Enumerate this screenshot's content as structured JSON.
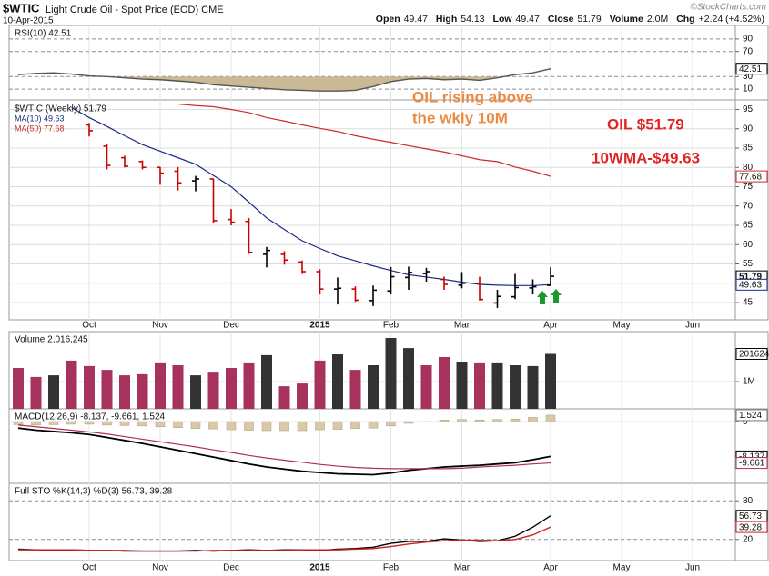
{
  "chart_data": {
    "type": "stock",
    "title": "$WTIC",
    "subtitle": "Light Crude Oil - Spot Price (EOD) CME",
    "date": "10-Apr-2015",
    "source": "©StockCharts.com",
    "quote": [
      {
        "label": "Open",
        "value": 49.47
      },
      {
        "label": "High",
        "value": 54.13
      },
      {
        "label": "Low",
        "value": 49.47
      },
      {
        "label": "Close",
        "value": 51.79
      },
      {
        "label": "Volume",
        "value": "2.0M"
      },
      {
        "label": "Chg",
        "value": "+2.24 (+4.52%)"
      }
    ],
    "annotations": [
      "OIL rising above",
      "the wkly 10M",
      "OIL $51.79",
      "10WMA-$49.63"
    ],
    "categories": [
      null,
      null,
      null,
      null,
      "Oct",
      null,
      null,
      null,
      "Nov",
      null,
      null,
      null,
      "Dec",
      null,
      null,
      null,
      null,
      "2015",
      null,
      null,
      null,
      "Feb",
      null,
      null,
      null,
      "Mar",
      null,
      null,
      null,
      null,
      "Apr",
      null,
      null,
      null,
      "May",
      null,
      null,
      null,
      "Jun"
    ],
    "panels": [
      {
        "type": "line",
        "label": "RSI(10) 42.51",
        "ylim": [
          0,
          100
        ],
        "yticks": [
          10,
          30,
          70,
          90
        ],
        "grid_style": "dashed",
        "fill_color": "#c9b994",
        "series": [
          {
            "color": "#555555",
            "values": [
              33,
              35,
              36,
              34,
              31,
              30,
              28,
              26,
              25,
              23,
              21,
              17,
              15,
              13,
              11,
              9,
              8,
              7,
              7,
              8,
              14,
              22,
              26,
              27,
              25,
              26,
              24,
              28,
              33,
              36,
              42.51,
              null,
              null,
              null,
              null,
              null,
              null,
              null,
              null
            ]
          }
        ]
      },
      {
        "type": "ohlc",
        "label": "$WTIC (Weekly) 51.79",
        "ylim": [
          41,
          97
        ],
        "yticks": [
          45,
          50,
          55,
          60,
          65,
          70,
          75,
          80,
          85,
          90,
          95
        ],
        "grid_style": "solid",
        "up_color": "#000000",
        "down_color": "#cc0000",
        "open": [
          null,
          null,
          null,
          null,
          91.0,
          85.5,
          82.5,
          81.5,
          80.0,
          79.0,
          76.5,
          77.0,
          66.5,
          66.0,
          57.5,
          57.5,
          55.5,
          53.0,
          48.5,
          48.5,
          45.5,
          48.0,
          51.5,
          52.5,
          51.0,
          49.5,
          50.0,
          44.9,
          46.5,
          48.8,
          49.47,
          null,
          null,
          null,
          null,
          null,
          null,
          null,
          null
        ],
        "high": [
          null,
          null,
          null,
          null,
          91.5,
          86.0,
          83.0,
          81.8,
          80.1,
          80.1,
          77.8,
          77.1,
          69.2,
          66.9,
          59.4,
          58.3,
          55.9,
          53.6,
          51.5,
          49.2,
          49.4,
          54.2,
          54.3,
          54.0,
          51.7,
          52.9,
          51.7,
          48.3,
          52.4,
          51.0,
          54.13,
          null,
          null,
          null,
          null,
          null,
          null,
          null,
          null
        ],
        "low": [
          null,
          null,
          null,
          null,
          88.0,
          79.5,
          80.0,
          79.5,
          75.5,
          74.0,
          73.8,
          65.7,
          65.0,
          57.6,
          54.1,
          54.8,
          52.4,
          47.1,
          44.5,
          45.2,
          44.1,
          47.1,
          48.3,
          50.4,
          48.3,
          48.7,
          45.5,
          43.6,
          45.9,
          47.1,
          49.47,
          null,
          null,
          null,
          null,
          null,
          null,
          null,
          null
        ],
        "close": [
          null,
          null,
          null,
          null,
          89.5,
          80.5,
          80.3,
          80.0,
          78.5,
          76.0,
          77.0,
          66.2,
          65.8,
          58.0,
          58.5,
          56.0,
          53.0,
          48.5,
          48.7,
          45.6,
          48.2,
          51.7,
          52.8,
          53.0,
          49.7,
          50.0,
          45.8,
          46.6,
          48.9,
          49.1,
          51.79,
          null,
          null,
          null,
          null,
          null,
          null,
          null,
          null
        ],
        "overlays": [
          {
            "name": "MA(10) 49.63",
            "color": "#1c2a86",
            "values": [
              null,
              null,
              null,
              95.5,
              92.9,
              90.6,
              88.2,
              85.9,
              84.2,
              82.5,
              80.8,
              77.9,
              75.0,
              71.0,
              66.9,
              63.9,
              61.0,
              59.0,
              57.1,
              55.8,
              54.5,
              53.3,
              52.2,
              51.6,
              51.0,
              50.3,
              49.7,
              49.5,
              49.4,
              49.4,
              49.63,
              null,
              null,
              null,
              null,
              null,
              null,
              null,
              null
            ]
          },
          {
            "name": "MA(50) 77.68",
            "color": "#cc2b2b",
            "values": [
              null,
              null,
              null,
              null,
              null,
              null,
              null,
              null,
              null,
              96.4,
              96.0,
              95.7,
              95.0,
              94.2,
              92.9,
              92.0,
              91.0,
              90.1,
              89.3,
              88.2,
              87.3,
              86.5,
              85.6,
              84.8,
              84.0,
              83.0,
              82.0,
              81.5,
              80.1,
              79.0,
              77.68,
              null,
              null,
              null,
              null,
              null,
              null,
              null,
              null
            ]
          }
        ]
      },
      {
        "type": "bar",
        "label": "Volume 2,016,245",
        "ylim": [
          0,
          2800000
        ],
        "yticks": [
          {
            "value": 1000000,
            "label": "1M"
          }
        ],
        "grid_style": "solid",
        "box_color": "#000000",
        "values": [
          1500000,
          1170000,
          1230000,
          1770000,
          1570000,
          1430000,
          1230000,
          1270000,
          1670000,
          1600000,
          1230000,
          1330000,
          1500000,
          1670000,
          1970000,
          830000,
          930000,
          1770000,
          2000000,
          1430000,
          1600000,
          2600000,
          2230000,
          1600000,
          1900000,
          1730000,
          1670000,
          1670000,
          1600000,
          1570000,
          2016245,
          null,
          null,
          null,
          null,
          null,
          null,
          null,
          null
        ],
        "colors": [
          "#a8325e",
          "#a8325e",
          "#333333",
          "#a8325e",
          "#a8325e",
          "#a8325e",
          "#a8325e",
          "#a8325e",
          "#a8325e",
          "#a8325e",
          "#333333",
          "#a8325e",
          "#a8325e",
          "#a8325e",
          "#333333",
          "#a8325e",
          "#a8325e",
          "#a8325e",
          "#333333",
          "#a8325e",
          "#333333",
          "#333333",
          "#333333",
          "#a8325e",
          "#a8325e",
          "#333333",
          "#a8325e",
          "#333333",
          "#333333",
          "#333333",
          "#333333",
          null,
          null,
          null,
          null,
          null,
          null,
          null,
          null
        ]
      },
      {
        "type": "macd",
        "label": "MACD(12,26,9) -8.137, -9.661, 1.524",
        "ylim": [
          -14,
          3
        ],
        "yticks": [
          0
        ],
        "grid_style": "solid",
        "histogram": {
          "color": "#d9c9a6",
          "values": [
            -0.7,
            -0.8,
            -0.7,
            -0.6,
            -0.6,
            -0.8,
            -0.9,
            -1.0,
            -1.2,
            -1.4,
            -1.6,
            -1.7,
            -1.9,
            -2.0,
            -2.1,
            -2.1,
            -2.1,
            -1.9,
            -1.8,
            -1.6,
            -1.5,
            -1.0,
            -0.4,
            0.0,
            0.4,
            0.5,
            0.4,
            0.5,
            0.6,
            1.0,
            1.524,
            null,
            null,
            null,
            null,
            null,
            null,
            null,
            null
          ]
        },
        "series": [
          {
            "color": "#000000",
            "values": [
              -1.5,
              -2.0,
              -2.3,
              -2.6,
              -3.0,
              -3.7,
              -4.4,
              -5.1,
              -5.9,
              -6.7,
              -7.5,
              -8.3,
              -9.1,
              -9.9,
              -10.6,
              -11.1,
              -11.6,
              -11.9,
              -12.2,
              -12.3,
              -12.4,
              -12.0,
              -11.4,
              -11.0,
              -10.6,
              -10.4,
              -10.2,
              -9.9,
              -9.6,
              -8.9,
              -8.137,
              null,
              null,
              null,
              null,
              null,
              null,
              null,
              null
            ]
          },
          {
            "color": "#b03050",
            "values": [
              -0.8,
              -1.2,
              -1.6,
              -2.0,
              -2.4,
              -2.9,
              -3.5,
              -4.1,
              -4.7,
              -5.3,
              -5.9,
              -6.6,
              -7.2,
              -7.9,
              -8.5,
              -9.0,
              -9.5,
              -10.0,
              -10.4,
              -10.7,
              -10.9,
              -11.0,
              -11.0,
              -11.0,
              -11.0,
              -10.9,
              -10.6,
              -10.4,
              -10.2,
              -9.9,
              -9.661,
              null,
              null,
              null,
              null,
              null,
              null,
              null,
              null
            ]
          }
        ]
      },
      {
        "type": "line",
        "label": "Full STO %K(14,3) %D(3) 56.73, 39.28",
        "ylim": [
          0,
          100
        ],
        "yticks": [
          20,
          80
        ],
        "grid_style": "dashed",
        "series": [
          {
            "color": "#000000",
            "values": [
              5,
              4,
              3,
              4,
              3,
              3,
              2,
              2,
              2,
              2,
              3,
              2,
              3,
              4,
              3,
              4,
              4,
              3,
              5,
              6,
              8,
              14,
              17,
              17,
              21,
              19,
              17,
              18,
              25,
              39,
              56.73,
              null,
              null,
              null,
              null,
              null,
              null,
              null,
              null
            ]
          },
          {
            "color": "#cc2222",
            "values": [
              4,
              4,
              4,
              4,
              3,
              3,
              3,
              2,
              2,
              2,
              2,
              3,
              3,
              3,
              3,
              3,
              4,
              4,
              4,
              5,
              6,
              9,
              13,
              16,
              18,
              19,
              19,
              18,
              20,
              27,
              39.28,
              null,
              null,
              null,
              null,
              null,
              null,
              null,
              null
            ]
          }
        ]
      }
    ]
  }
}
